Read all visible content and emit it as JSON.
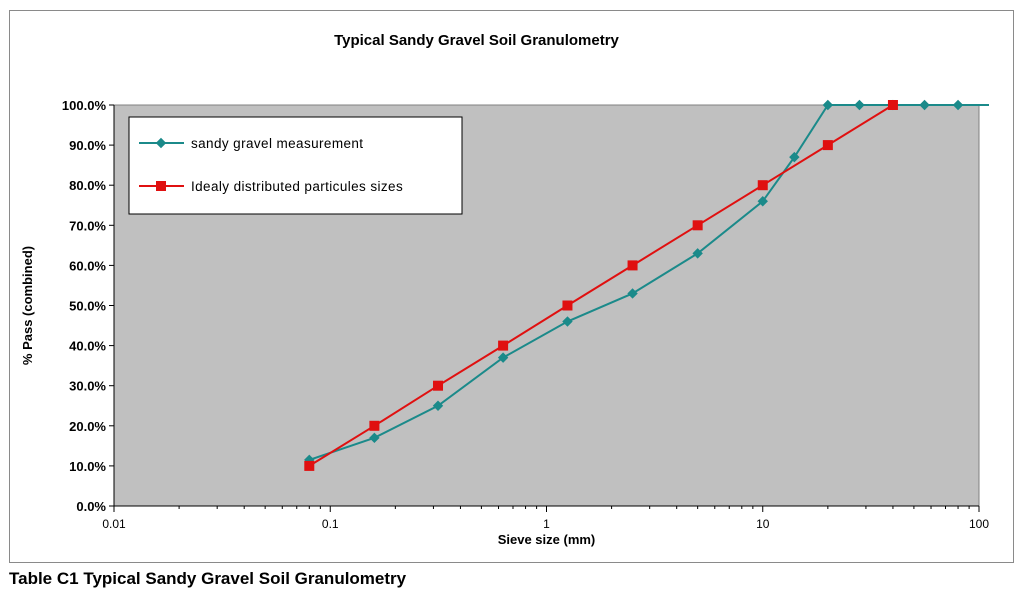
{
  "caption": "Table C1 Typical Sandy Gravel Soil Granulometry",
  "chart_data": {
    "type": "line",
    "title": "Typical Sandy Gravel Soil Granulometry",
    "xlabel": "Sieve size (mm)",
    "ylabel": "% Pass (combined)",
    "x_scale": "log",
    "xlim": [
      0.01,
      100
    ],
    "ylim": [
      0,
      100
    ],
    "x_ticks": [
      "0.01",
      "0.1",
      "1",
      "10",
      "100"
    ],
    "y_ticks": [
      "0.0%",
      "10.0%",
      "20.0%",
      "30.0%",
      "40.0%",
      "50.0%",
      "60.0%",
      "70.0%",
      "80.0%",
      "90.0%",
      "100.0%"
    ],
    "grid": false,
    "plot_background": "#c0c0c0",
    "legend_position": "top-left",
    "series": [
      {
        "name": "sandy gravel measurement",
        "color": "#1b8a8a",
        "marker": "diamond",
        "x": [
          0.08,
          0.16,
          0.315,
          0.63,
          1.25,
          2.5,
          5,
          10,
          14,
          20,
          28,
          40,
          56,
          80
        ],
        "y": [
          11.5,
          17,
          25,
          37,
          46,
          53,
          63,
          76,
          87,
          100,
          100,
          100,
          100,
          100
        ]
      },
      {
        "name": "Idealy distributed particules sizes",
        "color": "#e01010",
        "marker": "square",
        "x": [
          0.08,
          0.16,
          0.315,
          0.63,
          1.25,
          2.5,
          5,
          10,
          20,
          40
        ],
        "y": [
          10,
          20,
          30,
          40,
          50,
          60,
          70,
          80,
          90,
          100
        ]
      }
    ]
  }
}
